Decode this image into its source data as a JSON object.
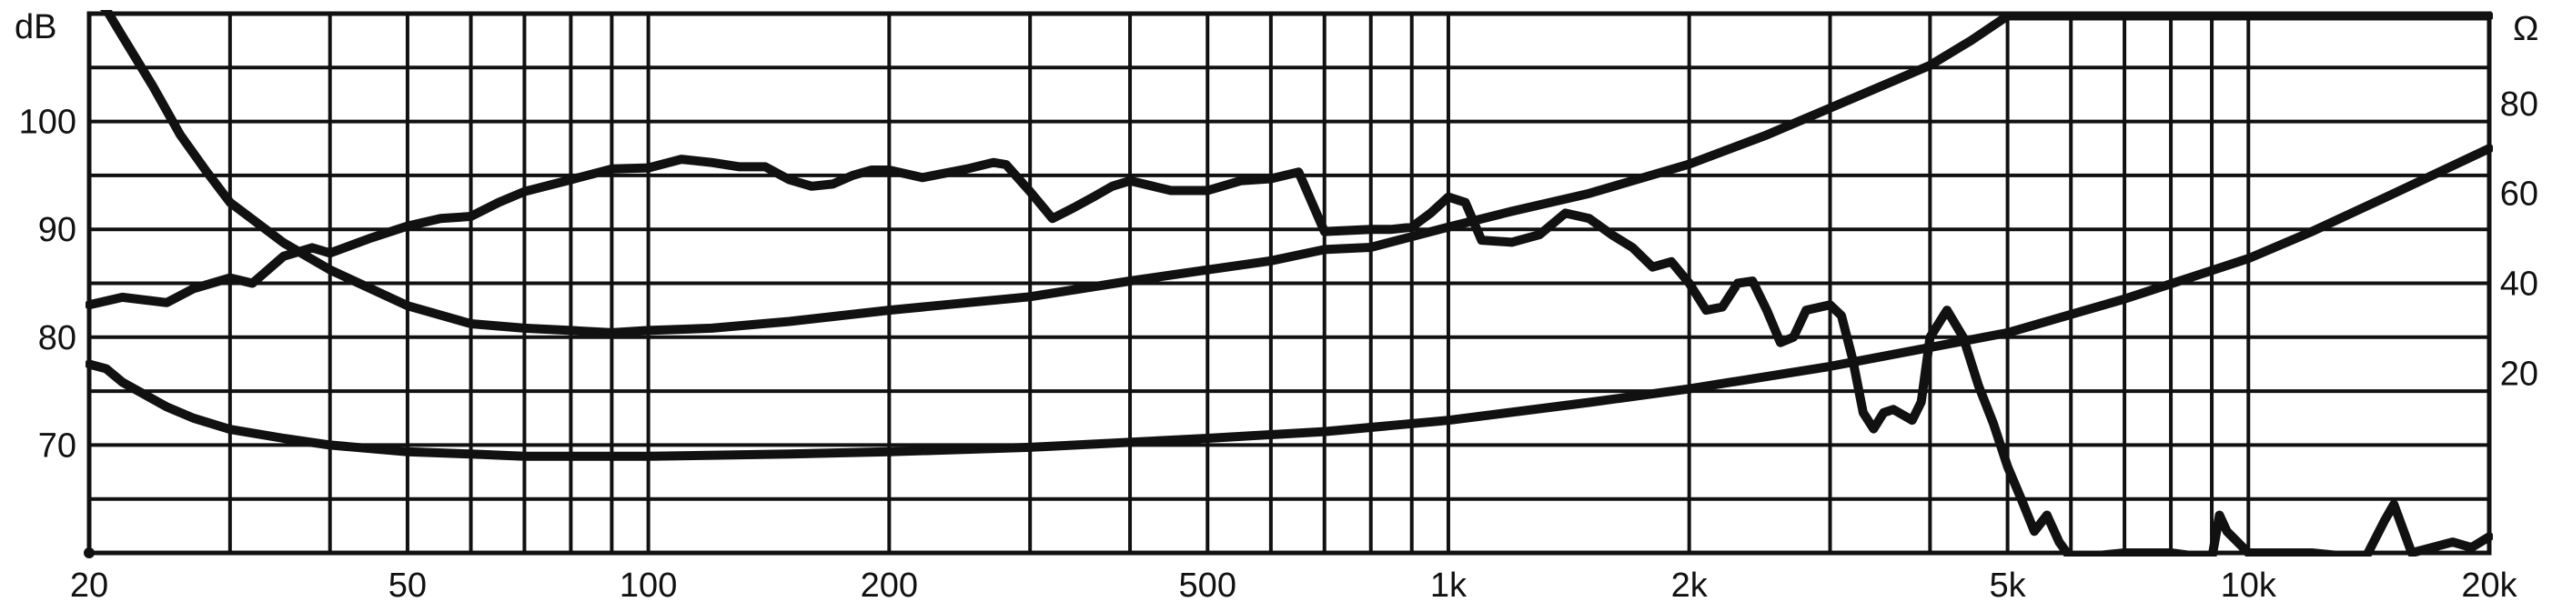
{
  "chart_data": {
    "type": "line",
    "title": "",
    "xscale": "log",
    "xlim": [
      20,
      20000
    ],
    "grid": true,
    "x_ticks": [
      {
        "value": 20,
        "label": "20"
      },
      {
        "value": 50,
        "label": "50"
      },
      {
        "value": 100,
        "label": "100"
      },
      {
        "value": 200,
        "label": "200"
      },
      {
        "value": 500,
        "label": "500"
      },
      {
        "value": 1000,
        "label": "1k"
      },
      {
        "value": 2000,
        "label": "2k"
      },
      {
        "value": 5000,
        "label": "5k"
      },
      {
        "value": 10000,
        "label": "10k"
      },
      {
        "value": 20000,
        "label": "20k"
      }
    ],
    "x_minor_grid": [
      30,
      40,
      60,
      70,
      80,
      90,
      300,
      400,
      600,
      700,
      800,
      900,
      3000,
      4000,
      6000,
      7000,
      8000,
      9000
    ],
    "y_left": {
      "unit": "dB",
      "ylim": [
        60,
        110
      ],
      "ticks": [
        70,
        80,
        90,
        100
      ],
      "tick_labels": [
        "70",
        "80",
        "90",
        "100"
      ]
    },
    "y_right": {
      "unit": "Ω",
      "ylim": [
        -20,
        100
      ],
      "ticks": [
        20,
        40,
        60,
        80
      ],
      "tick_labels": [
        "20",
        "40",
        "60",
        "80"
      ]
    },
    "series": [
      {
        "axis": "left",
        "x": [
          20,
          22,
          25,
          27,
          30,
          32,
          35,
          38,
          40,
          45,
          50,
          55,
          60,
          65,
          70,
          80,
          90,
          100,
          110,
          120,
          130,
          140,
          150,
          160,
          170,
          180,
          190,
          200,
          220,
          250,
          270,
          280,
          300,
          320,
          340,
          360,
          380,
          400,
          450,
          500,
          550,
          600,
          650,
          700,
          800,
          850,
          900,
          950,
          1000,
          1050,
          1100,
          1200,
          1300,
          1400,
          1500,
          1600,
          1700,
          1800,
          1900,
          2000,
          2100,
          2200,
          2300,
          2400,
          2500,
          2600,
          2700,
          2800,
          3000,
          3100,
          3200,
          3300,
          3400,
          3500,
          3600,
          3800,
          3900,
          4000,
          4200,
          4400,
          4600,
          4800,
          5000,
          5200,
          5400,
          5600,
          5800,
          6000,
          7000,
          8000,
          9000,
          9200,
          9400,
          10000,
          12000,
          14000,
          14800,
          15200,
          16000,
          18000,
          19000,
          20000
        ],
        "y": [
          83.0,
          83.7,
          83.2,
          84.5,
          85.5,
          85.0,
          87.5,
          88.3,
          87.8,
          89.2,
          90.3,
          91.0,
          91.2,
          92.5,
          93.5,
          94.6,
          95.6,
          95.7,
          96.5,
          96.2,
          95.8,
          95.8,
          94.6,
          94.0,
          94.2,
          95.0,
          95.5,
          95.5,
          94.8,
          95.6,
          96.2,
          96.0,
          93.5,
          91.0,
          92.0,
          93.0,
          94.0,
          94.5,
          93.6,
          93.6,
          94.5,
          94.7,
          95.3,
          89.8,
          90.0,
          90.0,
          90.2,
          91.5,
          93.0,
          92.5,
          89.0,
          88.8,
          89.5,
          91.5,
          91.0,
          89.5,
          88.3,
          86.5,
          87.0,
          85.0,
          82.5,
          82.8,
          85.0,
          85.2,
          82.5,
          79.5,
          80.0,
          82.5,
          83.0,
          82.0,
          78.0,
          73.0,
          71.5,
          73.0,
          73.3,
          72.3,
          74.0,
          80.0,
          82.5,
          80.0,
          75.5,
          72.0,
          68.0,
          65.0,
          62.0,
          63.5,
          61.0,
          59.5,
          60.0,
          60.0,
          59.5,
          63.5,
          62.0,
          60.0,
          60.0,
          59.5,
          63.0,
          64.5,
          60.0,
          61.0,
          60.5,
          61.5
        ]
      },
      {
        "axis": "right",
        "x": [
          20,
          21,
          22,
          24,
          26,
          28,
          30,
          35,
          40,
          50,
          60,
          70,
          80,
          90,
          100,
          120,
          150,
          200,
          300,
          400,
          500,
          600,
          700,
          800,
          1000,
          1200,
          1500,
          2000,
          2500,
          3000,
          4000,
          4500,
          5000,
          6000,
          8000,
          10000,
          15000,
          20000
        ],
        "y": [
          104,
          101,
          95,
          84,
          73,
          65,
          58,
          49,
          43,
          35,
          31,
          30,
          29.5,
          29,
          29.5,
          30,
          31.5,
          34,
          37,
          40.5,
          43,
          45,
          47.5,
          48,
          52.5,
          56,
          60,
          66.5,
          73,
          79,
          88.5,
          94,
          99.5,
          99.5,
          99.5,
          99.5,
          99.5,
          99.5
        ]
      },
      {
        "axis": "right",
        "x": [
          20,
          21,
          22,
          25,
          27,
          30,
          35,
          40,
          50,
          60,
          70,
          80,
          100,
          150,
          200,
          300,
          500,
          700,
          1000,
          1500,
          2000,
          3000,
          5000,
          7000,
          10000,
          12000,
          15000,
          20000
        ],
        "y": [
          22,
          21,
          18,
          12.5,
          10,
          7.5,
          5.5,
          4,
          2.5,
          2,
          1.5,
          1.5,
          1.5,
          2,
          2.5,
          3.5,
          5.5,
          7,
          9.5,
          13.5,
          16.5,
          21.5,
          29,
          36.5,
          45.5,
          51.5,
          59.5,
          70
        ]
      }
    ]
  }
}
